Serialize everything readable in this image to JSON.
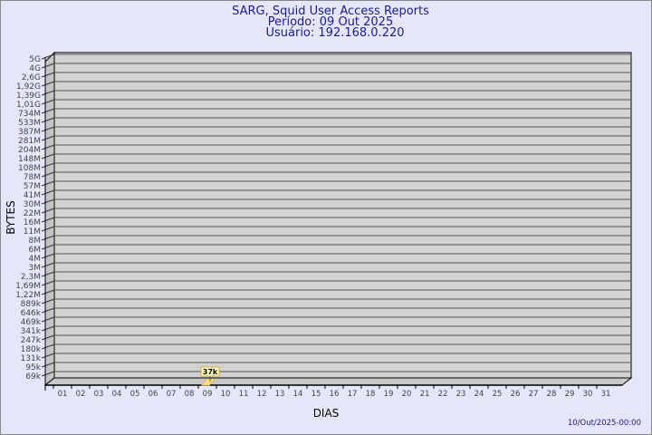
{
  "chart_data": {
    "type": "bar",
    "title": [
      "SARG, Squid User Access Reports",
      "Período: 09 Out 2025",
      "Usuário: 192.168.0.220"
    ],
    "xlabel": "DIAS",
    "ylabel": "BYTES",
    "y_scale": "log",
    "categories": [
      "01",
      "02",
      "03",
      "04",
      "05",
      "06",
      "07",
      "08",
      "09",
      "10",
      "11",
      "12",
      "13",
      "14",
      "15",
      "16",
      "17",
      "18",
      "19",
      "20",
      "21",
      "22",
      "23",
      "24",
      "25",
      "26",
      "27",
      "28",
      "29",
      "30",
      "31"
    ],
    "y_tick_labels": [
      "5G",
      "4G",
      "2,6G",
      "1,92G",
      "1,39G",
      "1,01G",
      "734M",
      "533M",
      "387M",
      "281M",
      "204M",
      "148M",
      "108M",
      "78M",
      "57M",
      "41M",
      "30M",
      "22M",
      "16M",
      "11M",
      "8M",
      "6M",
      "4M",
      "3M",
      "2,3M",
      "1,69M",
      "1,22M",
      "889k",
      "646k",
      "469k",
      "341k",
      "247k",
      "180k",
      "131k",
      "95k",
      "69k"
    ],
    "series": [
      {
        "values": [
          null,
          null,
          null,
          null,
          null,
          null,
          null,
          null,
          37000,
          null,
          null,
          null,
          null,
          null,
          null,
          null,
          null,
          null,
          null,
          null,
          null,
          null,
          null,
          null,
          null,
          null,
          null,
          null,
          null,
          null,
          null
        ],
        "labels": {
          "09": "37k"
        }
      }
    ],
    "grid": true,
    "colors": {
      "wall": "#d3d3d3",
      "bar": "#ffe08a",
      "label_bg": "#ffffc0",
      "text": "#1a1a9a"
    }
  },
  "footer": "10/Out/2025-00:00"
}
